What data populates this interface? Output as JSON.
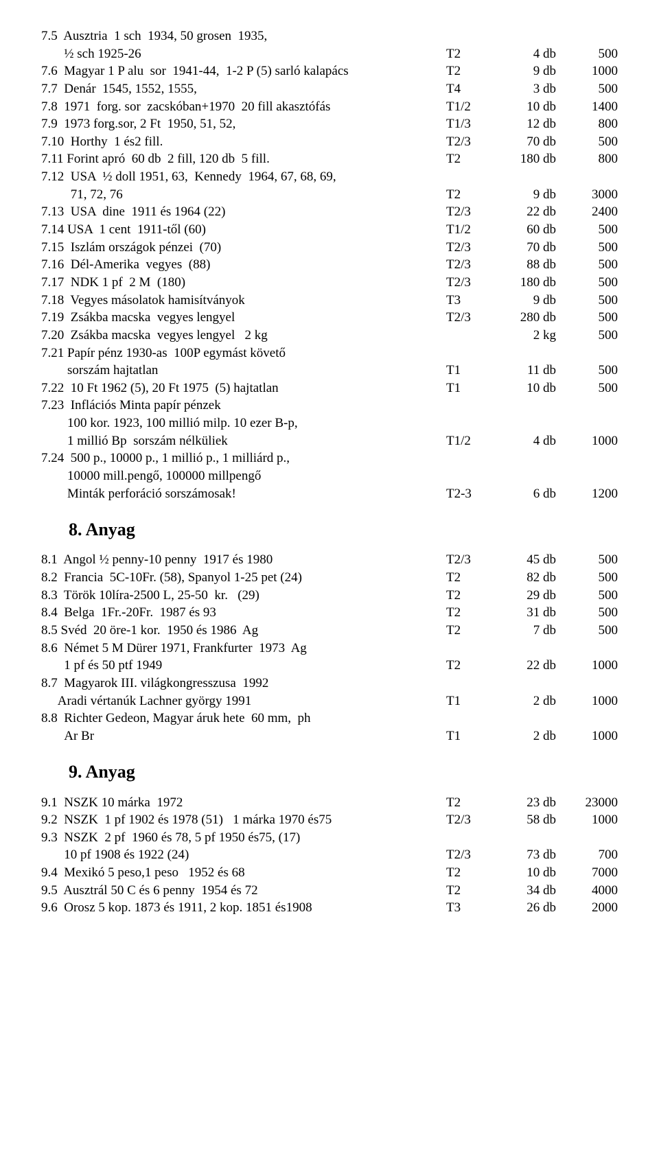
{
  "sections": {
    "s8": "8.  Anyag",
    "s9": "9.  Anyag"
  },
  "rows7": [
    {
      "d": "7.5  Ausztria  1 sch  1934, 50 grosen  1935,",
      "c": "",
      "q": "",
      "p": ""
    },
    {
      "d": "       ½ sch 1925-26",
      "c": "T2",
      "q": "4 db",
      "p": "500"
    },
    {
      "d": "7.6  Magyar 1 P alu  sor  1941-44,  1-2 P (5) sarló kalapács",
      "c": "T2",
      "q": "9 db",
      "p": "1000"
    },
    {
      "d": "7.7  Denár  1545, 1552, 1555,",
      "c": "T4",
      "q": "3 db",
      "p": "500"
    },
    {
      "d": "7.8  1971  forg. sor  zacskóban+1970  20 fill akasztófás",
      "c": "T1/2",
      "q": "10 db",
      "p": "1400"
    },
    {
      "d": "7.9  1973 forg.sor, 2 Ft  1950, 51, 52,",
      "c": "T1/3",
      "q": "12 db",
      "p": "800"
    },
    {
      "d": "7.10  Horthy  1 és2 fill.",
      "c": "T2/3",
      "q": "70 db",
      "p": "500"
    },
    {
      "d": "7.11 Forint apró  60 db  2 fill, 120 db  5 fill.",
      "c": "T2",
      "q": "180 db",
      "p": "800"
    },
    {
      "d": "7.12  USA  ½ doll 1951, 63,  Kennedy  1964, 67, 68, 69,",
      "c": "",
      "q": "",
      "p": ""
    },
    {
      "d": "         71, 72, 76",
      "c": "T2",
      "q": "9 db",
      "p": "3000"
    },
    {
      "d": "7.13  USA  dine  1911 és 1964 (22)",
      "c": "T2/3",
      "q": "22 db",
      "p": "2400"
    },
    {
      "d": "7.14 USA  1 cent  1911-től (60)",
      "c": "T1/2",
      "q": "60 db",
      "p": "500"
    },
    {
      "d": "7.15  Iszlám országok pénzei  (70)",
      "c": "T2/3",
      "q": "70 db",
      "p": "500"
    },
    {
      "d": "7.16  Dél-Amerika  vegyes  (88)",
      "c": "T2/3",
      "q": "88 db",
      "p": "500"
    },
    {
      "d": "7.17  NDK 1 pf  2 M  (180)",
      "c": "T2/3",
      "q": "180 db",
      "p": "500"
    },
    {
      "d": "7.18  Vegyes másolatok hamisítványok",
      "c": "T3",
      "q": "9 db",
      "p": "500"
    },
    {
      "d": "7.19  Zsákba macska  vegyes lengyel",
      "c": "T2/3",
      "q": "280 db",
      "p": "500"
    },
    {
      "d": "7.20  Zsákba macska  vegyes lengyel   2 kg",
      "c": "",
      "q": "2 kg",
      "p": "500"
    },
    {
      "d": "7.21 Papír pénz 1930-as  100P egymást követő",
      "c": "",
      "q": "",
      "p": ""
    },
    {
      "d": "        sorszám hajtatlan",
      "c": "T1",
      "q": "11 db",
      "p": "500"
    },
    {
      "d": "7.22  10 Ft 1962 (5), 20 Ft 1975  (5) hajtatlan",
      "c": "T1",
      "q": "10 db",
      "p": "500"
    },
    {
      "d": "7.23  Inflációs Minta papír pénzek",
      "c": "",
      "q": "",
      "p": ""
    },
    {
      "d": "        100 kor. 1923, 100 millió milp. 10 ezer B-p,",
      "c": "",
      "q": "",
      "p": ""
    },
    {
      "d": "        1 millió Bp  sorszám nélküliek",
      "c": "T1/2",
      "q": "4 db",
      "p": "1000"
    },
    {
      "d": "7.24  500 p., 10000 p., 1 millió p., 1 milliárd p.,",
      "c": "",
      "q": "",
      "p": ""
    },
    {
      "d": "        10000 mill.pengő, 100000 millpengő",
      "c": "",
      "q": "",
      "p": ""
    },
    {
      "d": "        Minták perforáció sorszámosak!",
      "c": "T2-3",
      "q": "6 db",
      "p": "1200"
    }
  ],
  "rows8": [
    {
      "d": "8.1  Angol ½ penny-10 penny  1917 és 1980",
      "c": "T2/3",
      "q": "45 db",
      "p": "500"
    },
    {
      "d": "8.2  Francia  5C-10Fr. (58), Spanyol 1-25 pet (24)",
      "c": "T2",
      "q": "82 db",
      "p": "500"
    },
    {
      "d": "8.3  Török 10líra-2500 L, 25-50  kr.   (29)",
      "c": "T2",
      "q": "29 db",
      "p": "500"
    },
    {
      "d": "8.4  Belga  1Fr.-20Fr.  1987 és 93",
      "c": "T2",
      "q": "31 db",
      "p": "500"
    },
    {
      "d": "8.5 Svéd  20 öre-1 kor.  1950 és 1986  Ag",
      "c": "T2",
      "q": "7 db",
      "p": "500"
    },
    {
      "d": "8.6  Német 5 M Dürer 1971, Frankfurter  1973  Ag",
      "c": "",
      "q": "",
      "p": ""
    },
    {
      "d": "       1 pf és 50 ptf 1949",
      "c": "T2",
      "q": "22 db",
      "p": "1000"
    },
    {
      "d": "8.7  Magyarok III. világkongresszusa  1992",
      "c": "",
      "q": "",
      "p": ""
    },
    {
      "d": "     Aradi vértanúk Lachner györgy 1991",
      "c": "T1",
      "q": "2 db",
      "p": "1000"
    },
    {
      "d": "8.8  Richter Gedeon, Magyar áruk hete  60 mm,  ph",
      "c": "",
      "q": "",
      "p": ""
    },
    {
      "d": "       Ar Br",
      "c": "T1",
      "q": "2 db",
      "p": "1000"
    }
  ],
  "rows9": [
    {
      "d": "9.1  NSZK 10 márka  1972",
      "c": "T2",
      "q": "23 db",
      "p": "23000"
    },
    {
      "d": "9.2  NSZK  1 pf 1902 és 1978 (51)   1 márka 1970 és75",
      "c": "T2/3",
      "q": "58 db",
      "p": "1000"
    },
    {
      "d": "9.3  NSZK  2 pf  1960 és 78, 5 pf 1950 és75, (17)",
      "c": "",
      "q": "",
      "p": ""
    },
    {
      "d": "       10 pf 1908 és 1922 (24)",
      "c": "T2/3",
      "q": "73 db",
      "p": "700"
    },
    {
      "d": "9.4  Mexikó 5 peso,1 peso   1952 és 68",
      "c": "T2",
      "q": "10 db",
      "p": "7000"
    },
    {
      "d": "9.5  Ausztrál 50 C és 6 penny  1954 és 72",
      "c": "T2",
      "q": "34 db",
      "p": "4000"
    },
    {
      "d": "9.6  Orosz 5 kop. 1873 és 1911, 2 kop. 1851 és1908",
      "c": "T3",
      "q": "26 db",
      "p": "2000"
    }
  ]
}
